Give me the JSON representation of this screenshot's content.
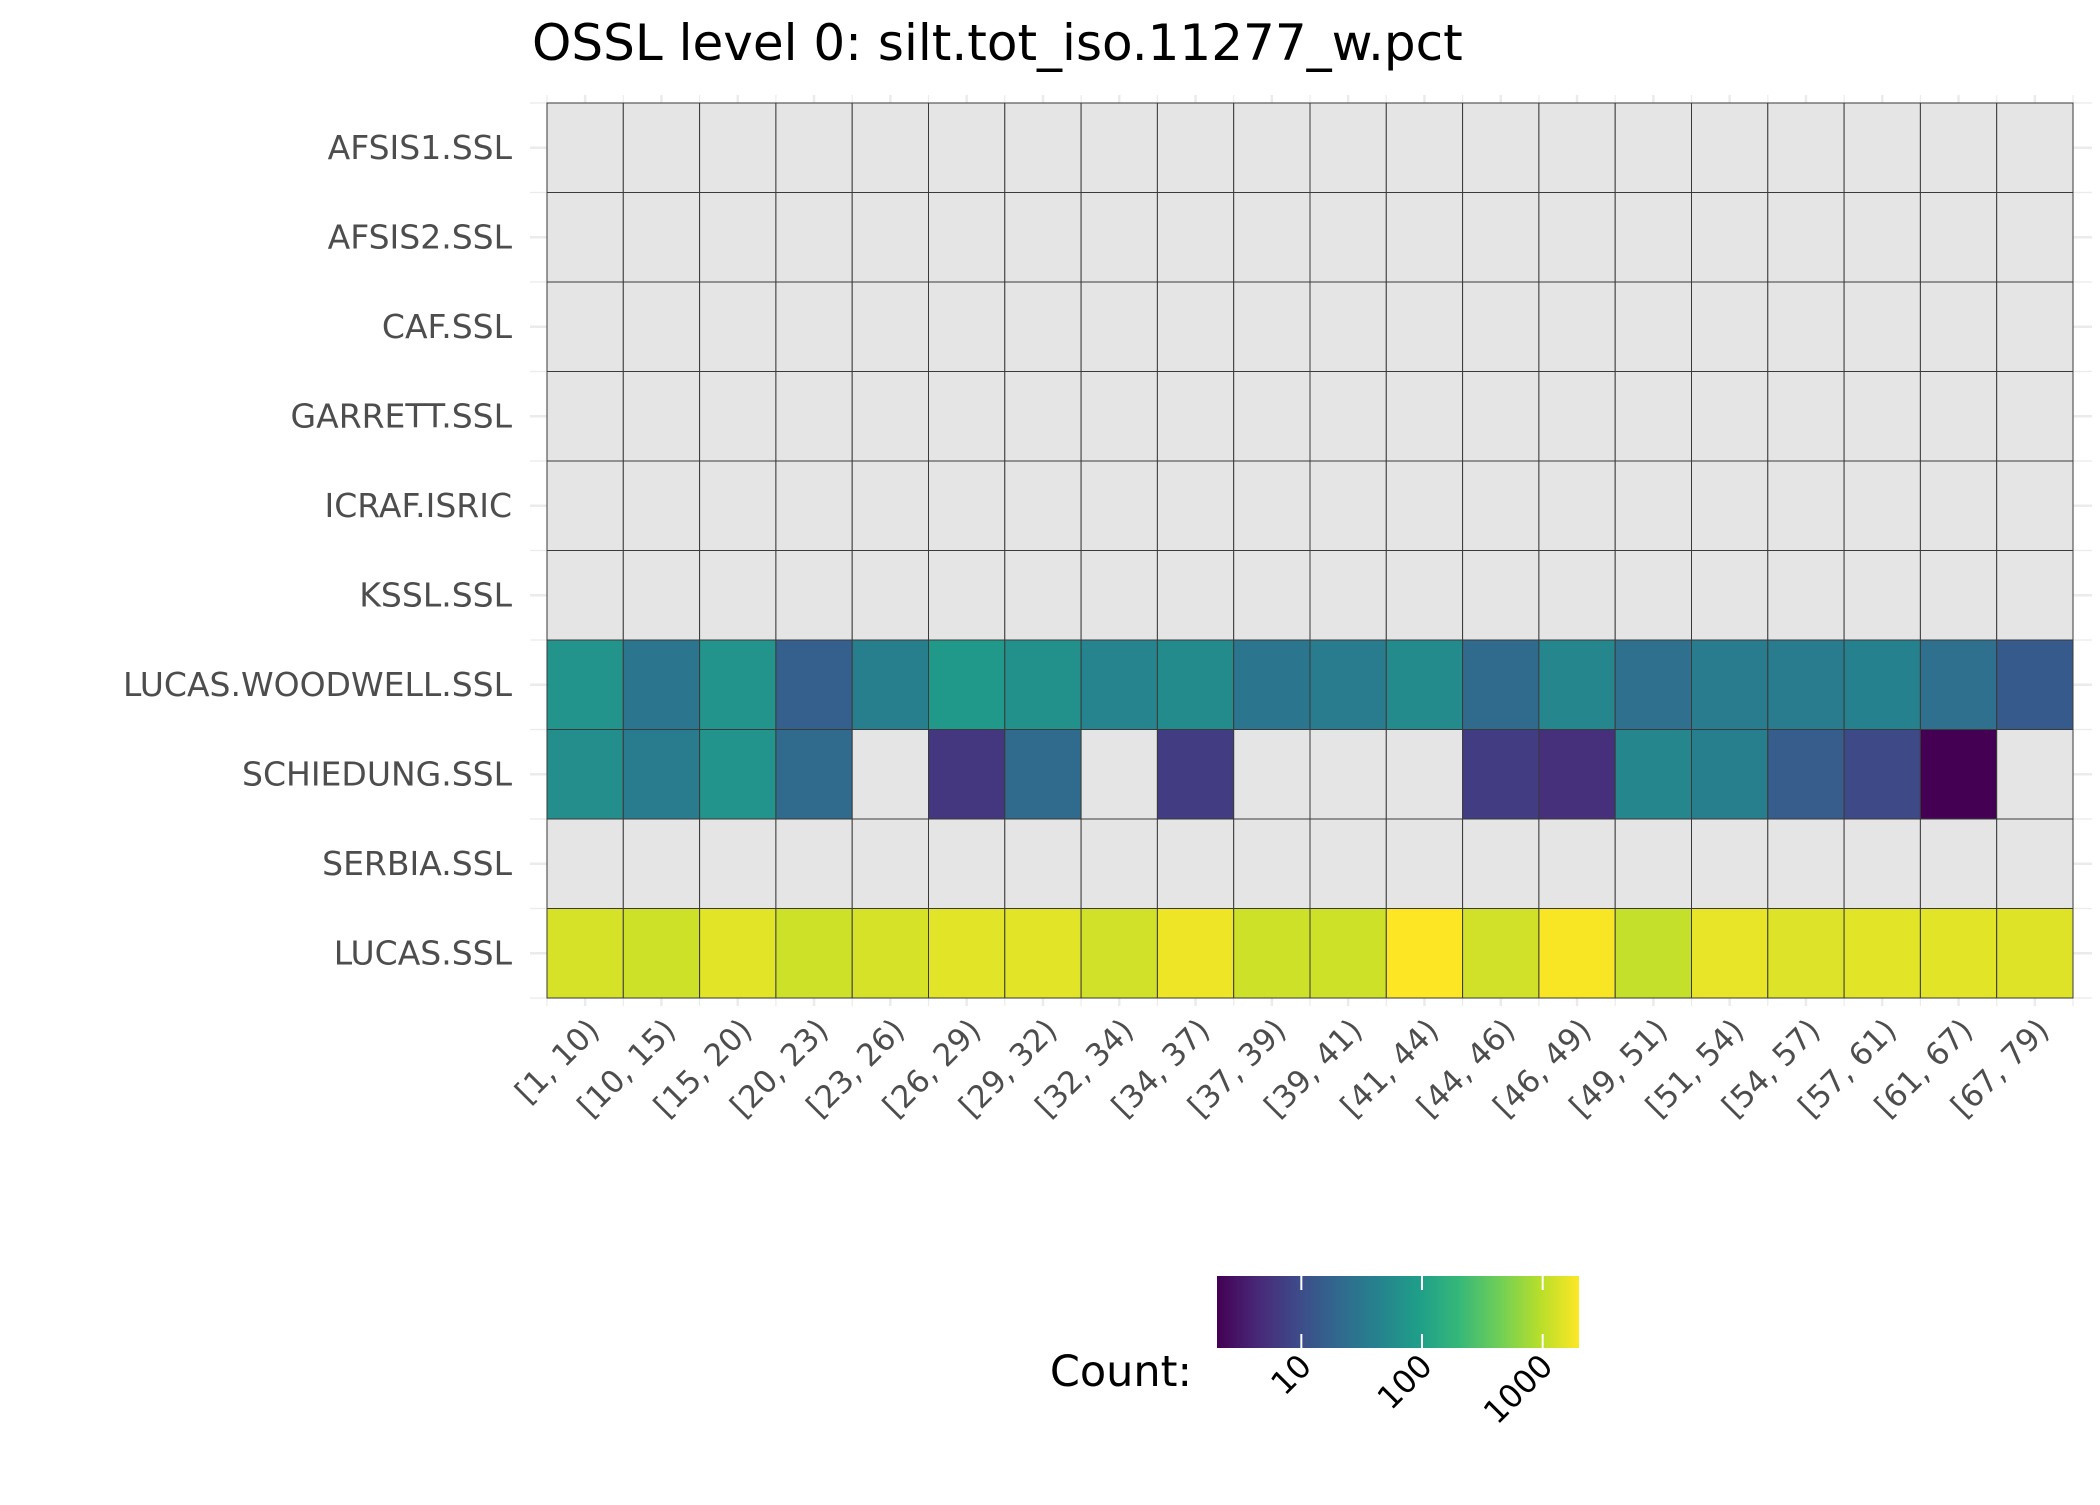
{
  "chart_data": {
    "type": "heatmap",
    "title": "OSSL level 0: silt.tot_iso.11277_w.pct",
    "xlabel": "",
    "ylabel": "",
    "x_categories": [
      "[1, 10)",
      "[10, 15)",
      "[15, 20)",
      "[20, 23)",
      "[23, 26)",
      "[26, 29)",
      "[29, 32)",
      "[32, 34)",
      "[34, 37)",
      "[37, 39)",
      "[39, 41)",
      "[41, 44)",
      "[44, 46)",
      "[46, 49)",
      "[49, 51)",
      "[51, 54)",
      "[54, 57)",
      "[57, 61)",
      "[61, 67)",
      "[67, 79)"
    ],
    "y_categories": [
      "AFSIS1.SSL",
      "AFSIS2.SSL",
      "CAF.SSL",
      "GARRETT.SSL",
      "ICRAF.ISRIC",
      "KSSL.SSL",
      "LUCAS.WOODWELL.SSL",
      "SCHIEDUNG.SSL",
      "SERBIA.SSL",
      "LUCAS.SSL"
    ],
    "values": [
      [
        null,
        null,
        null,
        null,
        null,
        null,
        null,
        null,
        null,
        null,
        null,
        null,
        null,
        null,
        null,
        null,
        null,
        null,
        null,
        null
      ],
      [
        null,
        null,
        null,
        null,
        null,
        null,
        null,
        null,
        null,
        null,
        null,
        null,
        null,
        null,
        null,
        null,
        null,
        null,
        null,
        null
      ],
      [
        null,
        null,
        null,
        null,
        null,
        null,
        null,
        null,
        null,
        null,
        null,
        null,
        null,
        null,
        null,
        null,
        null,
        null,
        null,
        null
      ],
      [
        null,
        null,
        null,
        null,
        null,
        null,
        null,
        null,
        null,
        null,
        null,
        null,
        null,
        null,
        null,
        null,
        null,
        null,
        null,
        null
      ],
      [
        null,
        null,
        null,
        null,
        null,
        null,
        null,
        null,
        null,
        null,
        null,
        null,
        null,
        null,
        null,
        null,
        null,
        null,
        null,
        null
      ],
      [
        null,
        null,
        null,
        null,
        null,
        null,
        null,
        null,
        null,
        null,
        null,
        null,
        null,
        null,
        null,
        null,
        null,
        null,
        null,
        null
      ],
      [
        70,
        30,
        70,
        16,
        40,
        80,
        65,
        45,
        55,
        30,
        35,
        55,
        22,
        50,
        25,
        35,
        35,
        42,
        25,
        14
      ],
      [
        60,
        35,
        70,
        22,
        null,
        6,
        22,
        null,
        7,
        null,
        null,
        null,
        7,
        5,
        50,
        40,
        15,
        9,
        2,
        null
      ],
      [
        null,
        null,
        null,
        null,
        null,
        null,
        null,
        null,
        null,
        null,
        null,
        null,
        null,
        null,
        null,
        null,
        null,
        null,
        null,
        null
      ],
      [
        1300,
        1200,
        1500,
        1200,
        1300,
        1500,
        1500,
        1250,
        1700,
        1200,
        1200,
        2000,
        1250,
        1900,
        1100,
        1600,
        1400,
        1500,
        1500,
        1450
      ]
    ],
    "color_scale": {
      "name": "viridis",
      "trans": "log10",
      "domain": [
        2,
        2000
      ],
      "stops": [
        "#440154",
        "#482878",
        "#3e4a89",
        "#31688e",
        "#26828e",
        "#1f9e89",
        "#35b779",
        "#6ece58",
        "#b5de2b",
        "#fde725"
      ],
      "na_color": "#e5e5e5"
    },
    "legend": {
      "title": "Count:",
      "position": "bottom",
      "ticks": [
        10,
        100,
        1000
      ],
      "tick_labels": [
        "10",
        "100",
        "1000"
      ]
    },
    "grid": true,
    "grid_color": "#ebebeb",
    "tile_border_color": "#3a3a3a"
  }
}
